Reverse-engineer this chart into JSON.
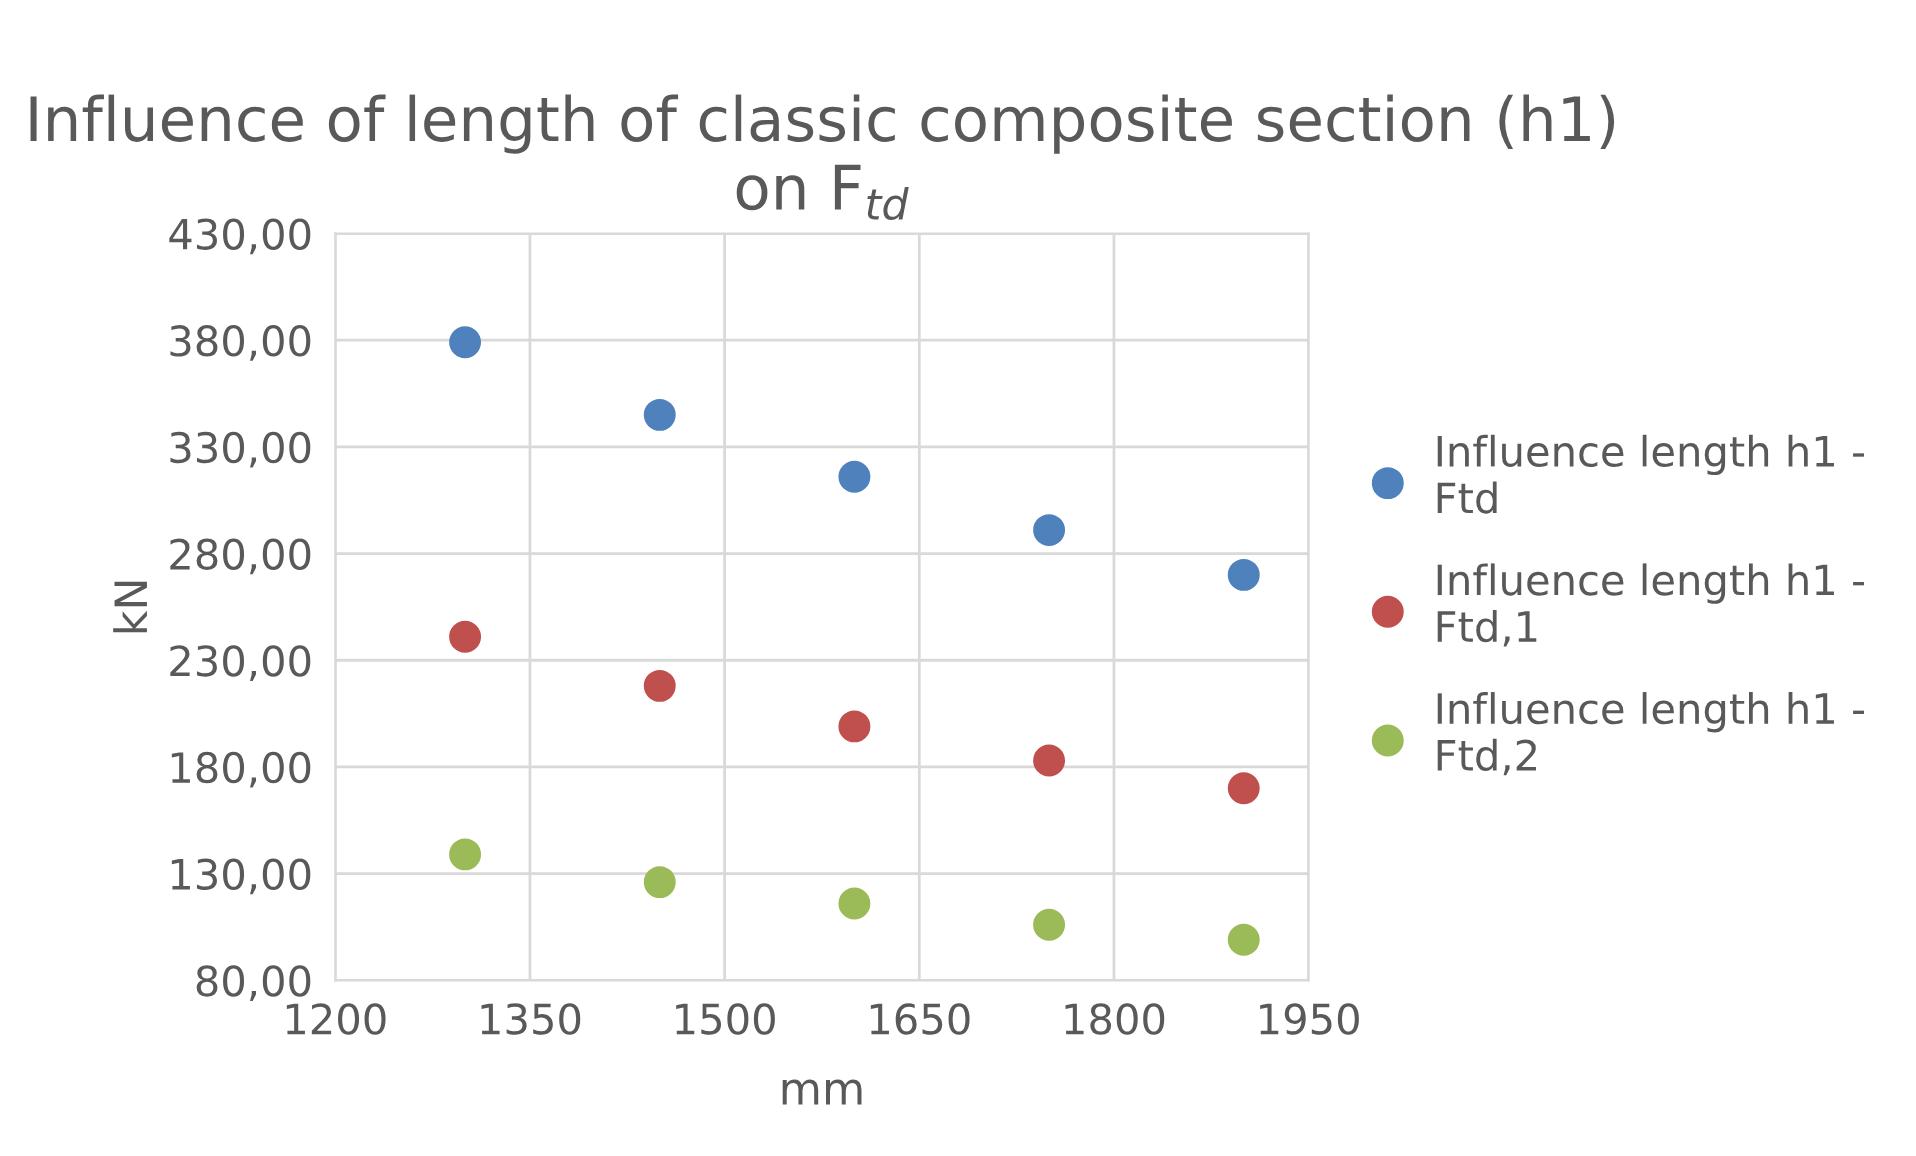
{
  "chart_data": {
    "type": "scatter",
    "title": "Influence of length of classic composite section (h1) on F$_{td}$",
    "xlabel": "mm",
    "ylabel": "kN",
    "x": [
      1300,
      1450,
      1600,
      1750,
      1900
    ],
    "series": [
      {
        "name": "Influence length h1 - Ftd",
        "color": "#4f81bd",
        "values": [
          379,
          345,
          316,
          291,
          270
        ]
      },
      {
        "name": "Influence length h1 - Ftd,1",
        "color": "#c0504d",
        "values": [
          241,
          218,
          199,
          183,
          170
        ]
      },
      {
        "name": "Influence length h1 - Ftd,2",
        "color": "#9bbb59",
        "values": [
          139,
          126,
          116,
          106,
          99
        ]
      }
    ],
    "xlim": [
      1200,
      1950
    ],
    "xticks": [
      1200,
      1350,
      1500,
      1650,
      1800,
      1950
    ],
    "ylim": [
      80,
      430
    ],
    "yticks": [
      {
        "value": 80,
        "label": "80,00"
      },
      {
        "value": 130,
        "label": "130,00"
      },
      {
        "value": 180,
        "label": "180,00"
      },
      {
        "value": 230,
        "label": "230,00"
      },
      {
        "value": 280,
        "label": "280,00"
      },
      {
        "value": 330,
        "label": "330,00"
      },
      {
        "value": 380,
        "label": "380,00"
      },
      {
        "value": 430,
        "label": "430,00"
      }
    ],
    "grid": true,
    "legend": "right",
    "marker": "circle"
  }
}
